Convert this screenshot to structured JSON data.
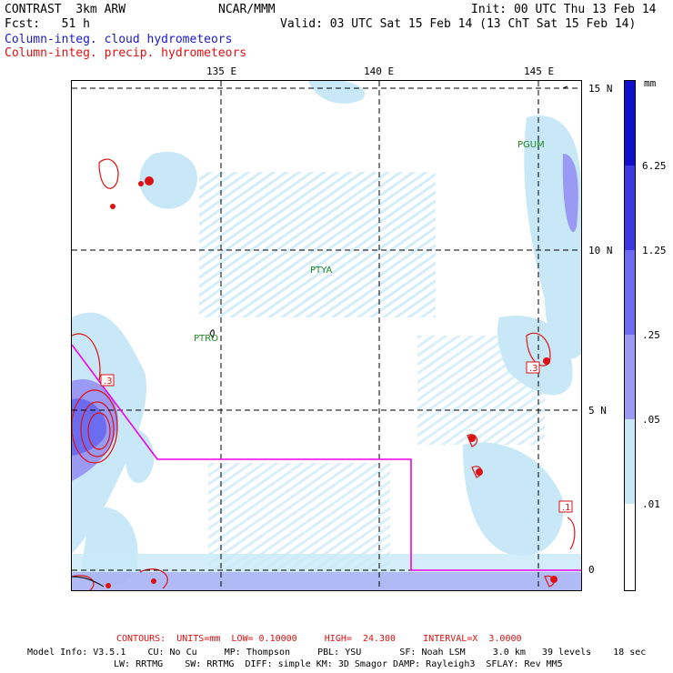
{
  "header": {
    "left_line1": "CONTRAST  3km ARW",
    "center_line1": "NCAR/MMM",
    "right_line1": "Init: 00 UTC Thu 13 Feb 14",
    "left_line2": "Fcst:   51 h",
    "right_line2": "Valid: 03 UTC Sat 15 Feb 14 (13 ChT Sat 15 Feb 14)",
    "legend_cloud": "Column-integ. cloud hydrometeors",
    "legend_precip": "Column-integ. precip. hydrometeors"
  },
  "axes": {
    "lon_ticks": [
      "135 E",
      "140 E",
      "145 E"
    ],
    "lat_ticks": [
      "15 N",
      "10 N",
      "5 N",
      "0"
    ]
  },
  "stations": [
    "PGUM",
    "PTYA",
    "PTRO"
  ],
  "contour_labels": [
    ".3",
    ".3",
    ".1"
  ],
  "colorbar": {
    "units": "mm",
    "labels": [
      "6.25",
      "1.25",
      ".25",
      ".05",
      ".01"
    ],
    "colors": [
      "#1010cc",
      "#3a3ae0",
      "#6c6cf0",
      "#9a9af4",
      "#c8e8f8",
      "#ffffff"
    ]
  },
  "colors": {
    "cloud_text": "#1a1acc",
    "precip_text": "#dd1111",
    "boundary": "#ee00ee",
    "station": "#228822"
  },
  "footer": {
    "contours": "CONTOURS:  UNITS=mm  LOW= 0.10000     HIGH=  24.300     INTERVAL=X  3.0000",
    "model_line1": "Model Info: V3.5.1    CU: No Cu     MP: Thompson     PBL: YSU       SF: Noah LSM     3.0 km   39 levels    18 sec",
    "model_line2": "LW: RRTMG    SW: RRTMG  DIFF: simple KM: 3D Smagor DAMP: Rayleigh3  SFLAY: Rev MM5"
  }
}
